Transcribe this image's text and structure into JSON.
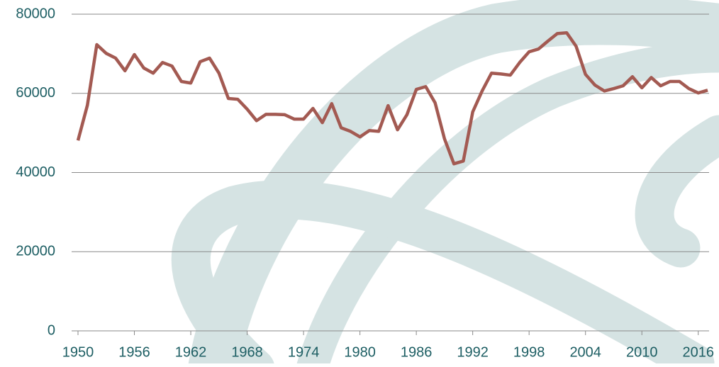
{
  "chart_data": {
    "type": "line",
    "categories": [
      "1950",
      null,
      null,
      null,
      null,
      null,
      "1956",
      null,
      null,
      null,
      null,
      null,
      "1962",
      null,
      null,
      null,
      null,
      null,
      "1968",
      null,
      null,
      null,
      null,
      null,
      "1974",
      null,
      null,
      null,
      null,
      null,
      "1980",
      null,
      null,
      null,
      null,
      null,
      "1986",
      null,
      null,
      null,
      null,
      null,
      "1992",
      null,
      null,
      null,
      null,
      null,
      "1998",
      null,
      null,
      null,
      null,
      null,
      "2004",
      null,
      null,
      null,
      null,
      null,
      "2010",
      null,
      null,
      null,
      null,
      null,
      "2016",
      null
    ],
    "series": [
      {
        "color": "#a35a52",
        "values": [
          48100,
          57000,
          72300,
          70100,
          68900,
          65700,
          69800,
          66400,
          65100,
          67800,
          66900,
          63000,
          62600,
          68000,
          68900,
          65100,
          58700,
          58500,
          56000,
          53100,
          54700,
          54700,
          54600,
          53500,
          53500,
          56200,
          52600,
          57400,
          51300,
          50400,
          49000,
          50600,
          50400,
          56900,
          50800,
          54600,
          61000,
          61700,
          57600,
          48500,
          42200,
          42900,
          55300,
          60600,
          65100,
          64900,
          64600,
          67800,
          70500,
          71200,
          73200,
          75100,
          75300,
          71900,
          64800,
          62100,
          60600,
          61200,
          61900,
          64200,
          61400,
          64000,
          61900,
          63000,
          63000,
          61200,
          60100,
          60800
        ]
      }
    ],
    "ylim": [
      0,
      80000
    ],
    "yticks": [
      0,
      20000,
      40000,
      60000,
      80000
    ],
    "grid": true
  }
}
